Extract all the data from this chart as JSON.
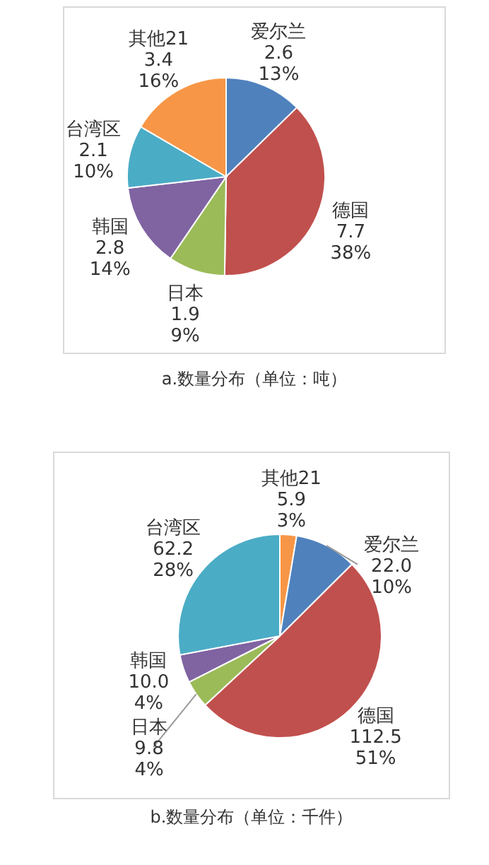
{
  "chart_data": [
    {
      "type": "pie",
      "title": "a.数量分布（单位：吨）",
      "categories": [
        "爱尔兰",
        "德国",
        "日本",
        "韩国",
        "台湾区",
        "其他21"
      ],
      "values": [
        2.6,
        7.7,
        1.9,
        2.8,
        2.1,
        3.4
      ],
      "colors": [
        "#4f81bd",
        "#c0504d",
        "#9bbb59",
        "#8064a2",
        "#4bacc6",
        "#f79646"
      ],
      "value_labels": [
        "2.6\n13%",
        "7.7\n38%",
        "1.9\n9%",
        "2.8\n14%",
        "2.1\n10%",
        "3.4\n16%"
      ]
    },
    {
      "type": "pie",
      "title": "b.数量分布（单位：千件）",
      "categories": [
        "其他21",
        "爱尔兰",
        "德国",
        "日本",
        "韩国",
        "台湾区"
      ],
      "values": [
        5.9,
        22.0,
        112.5,
        9.8,
        10.0,
        62.2
      ],
      "colors": [
        "#f79646",
        "#4f81bd",
        "#c0504d",
        "#9bbb59",
        "#8064a2",
        "#4bacc6"
      ],
      "value_labels": [
        "5.9\n3%",
        "22.0\n10%",
        "112.5\n51%",
        "9.8\n4%",
        "10.0\n4%",
        "62.2\n28%"
      ]
    }
  ]
}
